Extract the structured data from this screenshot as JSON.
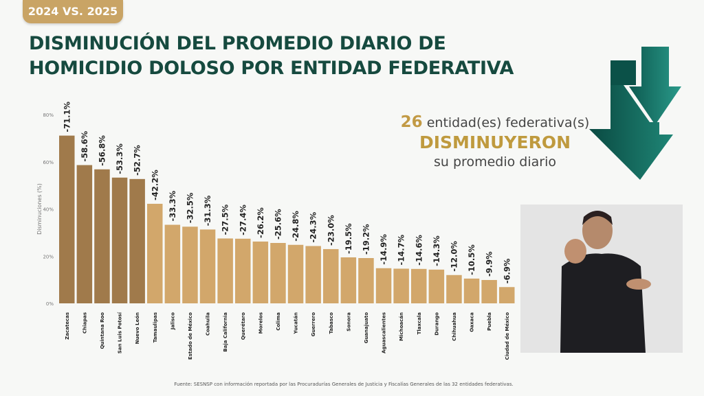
{
  "header": {
    "badge": "2024 VS. 2025",
    "title_line1": "DISMINUCIÓN DEL PROMEDIO DIARIO DE",
    "title_line2": "HOMICIDIO DOLOSO POR ENTIDAD FEDERATIVA"
  },
  "callout": {
    "count": "26",
    "line1": "entidad(es) federativa(s)",
    "line2": "DISMINUYERON",
    "line3": "su promedio diario"
  },
  "icons": {
    "arrows": "double-down-arrow-icon"
  },
  "colors": {
    "title": "#164a3f",
    "accent": "#c9a465",
    "bar_top5": "#a07a4b",
    "bar_rest": "#d2a76b",
    "arrow": "#136b5f"
  },
  "chart_data": {
    "type": "bar",
    "ylabel": "Disminuciones (%)",
    "ylim": [
      0,
      80
    ],
    "yticks": [
      "0%",
      "20%",
      "40%",
      "60%",
      "80%"
    ],
    "yticks_values": [
      0,
      20,
      40,
      60,
      80
    ],
    "grid": false,
    "categories": [
      "Zacatecas",
      "Chiapas",
      "Quintana Roo",
      "San Luis Potosí",
      "Nuevo León",
      "Tamaulipas",
      "Jalisco",
      "Estado de México",
      "Coahuila",
      "Baja California",
      "Querétaro",
      "Morelos",
      "Colima",
      "Yucatán",
      "Guerrero",
      "Tabasco",
      "Sonora",
      "Guanajuato",
      "Aguascalientes",
      "Michoacán",
      "Tlaxcala",
      "Durango",
      "Chihuahua",
      "Oaxaca",
      "Puebla",
      "Ciudad de México"
    ],
    "values": [
      71.1,
      58.6,
      56.8,
      53.3,
      52.7,
      42.2,
      33.3,
      32.5,
      31.3,
      27.5,
      27.4,
      26.2,
      25.6,
      24.8,
      24.3,
      23.0,
      19.5,
      19.2,
      14.9,
      14.7,
      14.6,
      14.3,
      12.0,
      10.5,
      9.9,
      6.9
    ],
    "labels": [
      "-71.1%",
      "-58.6%",
      "-56.8%",
      "-53.3%",
      "-52.7%",
      "-42.2%",
      "-33.3%",
      "-32.5%",
      "-31.3%",
      "-27.5%",
      "-27.4%",
      "-26.2%",
      "-25.6%",
      "-24.8%",
      "-24.3%",
      "-23.0%",
      "-19.5%",
      "-19.2%",
      "-14.9%",
      "-14.7%",
      "-14.6%",
      "-14.3%",
      "-12.0%",
      "-10.5%",
      "-9.9%",
      "-6.9%"
    ],
    "tier": [
      "top",
      "top",
      "top",
      "top",
      "top",
      "rest",
      "rest",
      "rest",
      "rest",
      "rest",
      "rest",
      "rest",
      "rest",
      "rest",
      "rest",
      "rest",
      "rest",
      "rest",
      "rest",
      "rest",
      "rest",
      "rest",
      "rest",
      "rest",
      "rest",
      "rest"
    ]
  },
  "footer": {
    "source": "Fuente: SESNSP con información reportada por las Procuradurías Generales de Justicia y Fiscalías Generales de las 32 entidades federativas."
  }
}
